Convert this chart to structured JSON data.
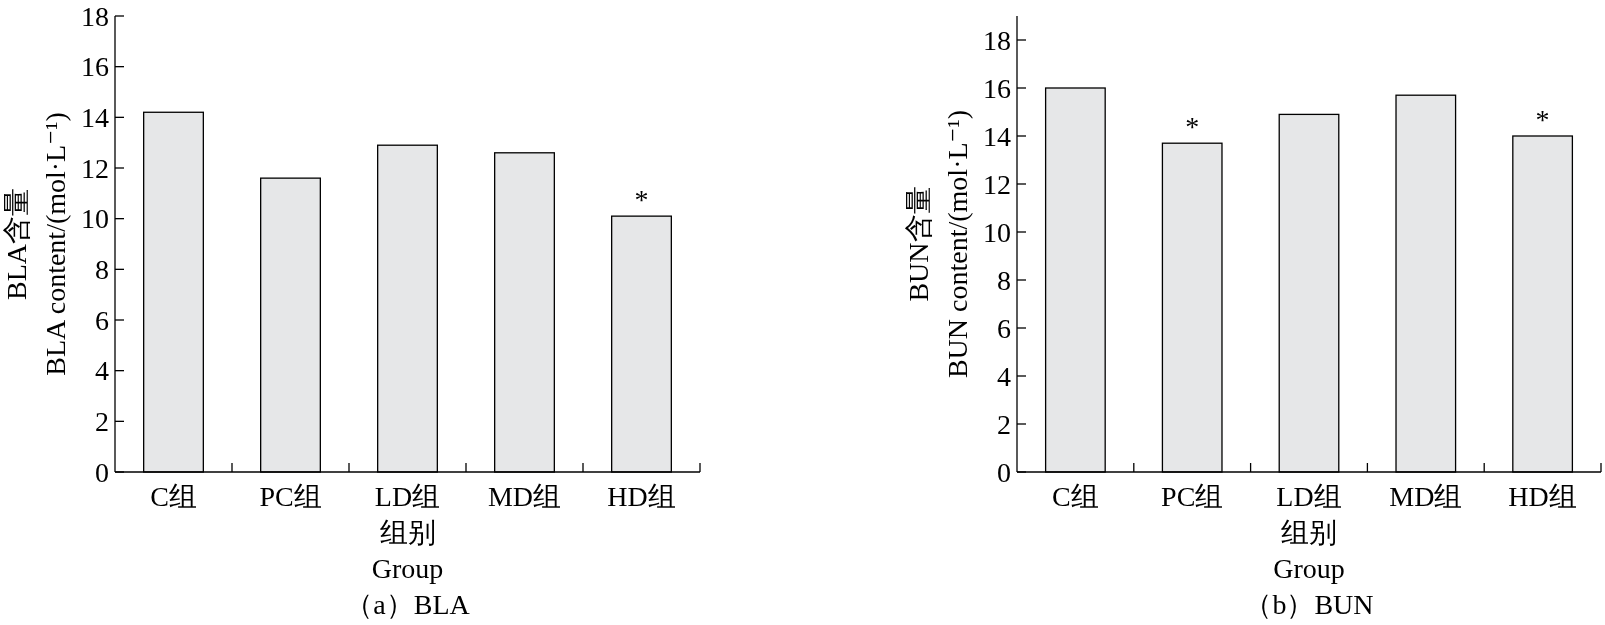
{
  "chart_data": [
    {
      "type": "bar",
      "title": "（a）BLA",
      "xlabel": "组别\nGroup",
      "ylabel": "BLA含量\nBLA content/(mol·L⁻¹)",
      "categories": [
        "C组",
        "PC组",
        "LD组",
        "MD组",
        "HD组"
      ],
      "values": [
        14.2,
        11.6,
        12.9,
        12.6,
        10.1
      ],
      "color": "#e6e7e8",
      "ylim": [
        0,
        18
      ],
      "yticks": [
        0,
        2,
        4,
        6,
        8,
        10,
        12,
        14,
        16,
        18
      ],
      "annotations": [
        {
          "text": "*",
          "x": "HD组",
          "y": 10.1
        }
      ]
    },
    {
      "type": "bar",
      "title": "（b）BUN",
      "xlabel": "组别\nGroup",
      "ylabel": "BUN含量\nBUN content/(mol·L⁻¹)",
      "categories": [
        "C组",
        "PC组",
        "LD组",
        "MD组",
        "HD组"
      ],
      "values": [
        16.0,
        13.7,
        14.9,
        15.7,
        14.0
      ],
      "color": "#e6e7e8",
      "ylim": [
        0,
        19
      ],
      "yticks": [
        0,
        2,
        4,
        6,
        8,
        10,
        12,
        14,
        16,
        18
      ],
      "annotations": [
        {
          "text": "*",
          "x": "PC组",
          "y": 13.7
        },
        {
          "text": "*",
          "x": "HD组",
          "y": 14.0
        }
      ]
    }
  ]
}
